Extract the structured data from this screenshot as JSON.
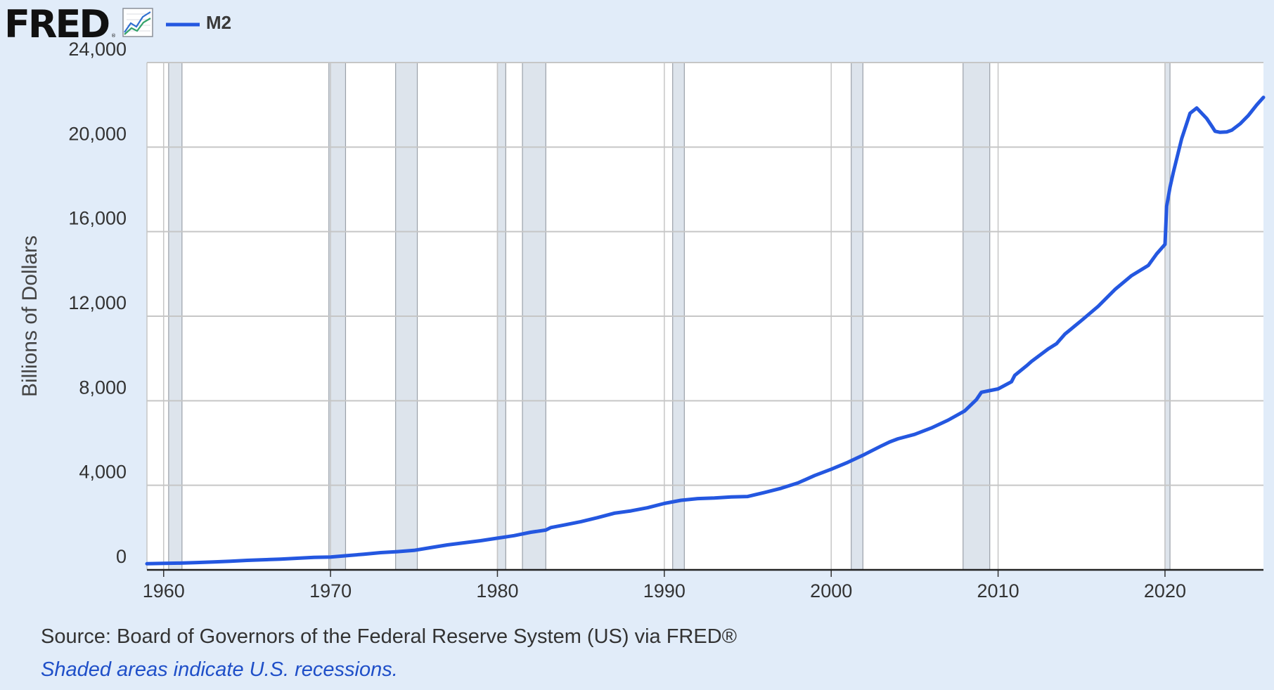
{
  "header": {
    "logo_text": "FRED",
    "logo_icon": "line-chart-icon",
    "legend_label": "M2"
  },
  "colors": {
    "series": "#2457e0",
    "recession": "#dde4ec",
    "grid": "#c6c6c6",
    "background": "#e1ecf9",
    "plot_background": "#ffffff"
  },
  "footer": {
    "source": "Source: Board of Governors of the Federal Reserve System (US) via FRED®",
    "note": "Shaded areas indicate U.S. recessions."
  },
  "chart_data": {
    "type": "line",
    "ylabel": "Billions of Dollars",
    "xlim": [
      1959.0,
      2025.9
    ],
    "ylim": [
      0,
      24000
    ],
    "yticks": [
      0,
      4000,
      8000,
      12000,
      16000,
      20000,
      24000
    ],
    "ytick_labels": [
      "0",
      "4,000",
      "8,000",
      "12,000",
      "16,000",
      "20,000",
      "24,000"
    ],
    "xticks": [
      1960,
      1970,
      1980,
      1990,
      2000,
      2010,
      2020
    ],
    "xtick_labels": [
      "1960",
      "1970",
      "1980",
      "1990",
      "2000",
      "2010",
      "2020"
    ],
    "grid": true,
    "legend_position": "top-left",
    "recessions": [
      [
        1960.3,
        1961.1
      ],
      [
        1969.9,
        1970.9
      ],
      [
        1973.9,
        1975.2
      ],
      [
        1980.0,
        1980.5
      ],
      [
        1981.5,
        1982.9
      ],
      [
        1990.5,
        1991.2
      ],
      [
        2001.2,
        2001.9
      ],
      [
        2007.9,
        2009.5
      ],
      [
        2020.0,
        2020.3
      ]
    ],
    "series": [
      {
        "name": "M2",
        "x": [
          1959.0,
          1960.0,
          1961.0,
          1962.0,
          1963.0,
          1964.0,
          1965.0,
          1966.0,
          1967.0,
          1968.0,
          1969.0,
          1970.0,
          1971.0,
          1972.0,
          1973.0,
          1974.0,
          1975.0,
          1976.0,
          1977.0,
          1978.0,
          1979.0,
          1980.0,
          1981.0,
          1982.0,
          1982.9,
          1983.2,
          1984.0,
          1985.0,
          1986.0,
          1987.0,
          1988.0,
          1989.0,
          1990.0,
          1991.0,
          1992.0,
          1993.0,
          1994.0,
          1995.0,
          1996.0,
          1997.0,
          1998.0,
          1999.0,
          2000.0,
          2001.0,
          2002.0,
          2003.0,
          2003.5,
          2004.0,
          2005.0,
          2006.0,
          2007.0,
          2008.0,
          2008.7,
          2009.0,
          2010.0,
          2010.8,
          2011.0,
          2011.7,
          2012.0,
          2013.0,
          2013.5,
          2014.0,
          2015.0,
          2016.0,
          2017.0,
          2018.0,
          2019.0,
          2019.5,
          2020.0,
          2020.1,
          2020.3,
          2020.5,
          2021.0,
          2021.5,
          2021.9,
          2022.2,
          2022.5,
          2022.8,
          2023.0,
          2023.3,
          2023.7,
          2024.0,
          2024.5,
          2025.0,
          2025.5,
          2025.9
        ],
        "values": [
          290,
          305,
          320,
          345,
          375,
          410,
          450,
          480,
          510,
          550,
          590,
          605,
          670,
          740,
          815,
          860,
          920,
          1050,
          1180,
          1280,
          1380,
          1500,
          1620,
          1780,
          1880,
          2000,
          2120,
          2280,
          2470,
          2680,
          2790,
          2940,
          3140,
          3290,
          3370,
          3400,
          3450,
          3470,
          3660,
          3860,
          4110,
          4460,
          4760,
          5090,
          5460,
          5860,
          6050,
          6200,
          6410,
          6710,
          7080,
          7520,
          8050,
          8400,
          8560,
          8900,
          9200,
          9650,
          9860,
          10450,
          10700,
          11150,
          11800,
          12470,
          13260,
          13920,
          14400,
          14950,
          15400,
          17200,
          18100,
          18800,
          20400,
          21600,
          21850,
          21600,
          21350,
          21000,
          20750,
          20700,
          20720,
          20800,
          21100,
          21500,
          22000,
          22350
        ]
      }
    ]
  }
}
